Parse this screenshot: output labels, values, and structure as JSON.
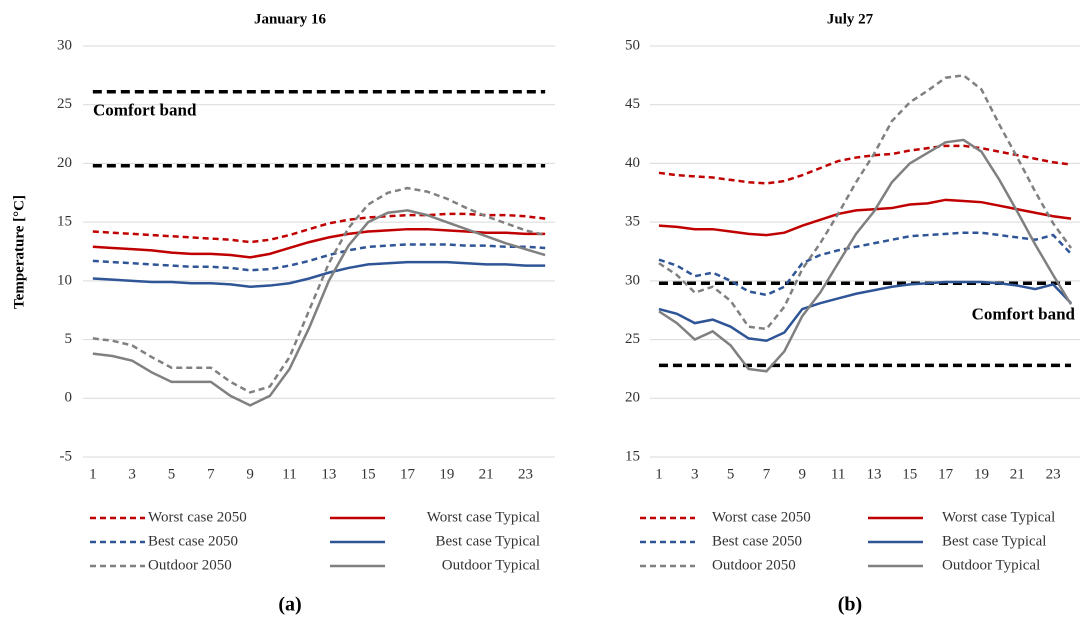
{
  "chart_data": [
    {
      "type": "line",
      "title": "January 16",
      "ylabel": "Temperature [°C]",
      "panel_label": "(a)",
      "x": [
        1,
        2,
        3,
        4,
        5,
        6,
        7,
        8,
        9,
        10,
        11,
        12,
        13,
        14,
        15,
        16,
        17,
        18,
        19,
        20,
        21,
        22,
        23,
        24
      ],
      "xlim": [
        0.5,
        24.5
      ],
      "xticks": [
        1,
        3,
        5,
        7,
        9,
        11,
        13,
        15,
        17,
        19,
        21,
        23
      ],
      "ylim": [
        -5,
        30
      ],
      "yticks": [
        -5,
        0,
        5,
        10,
        15,
        20,
        25,
        30
      ],
      "grid": true,
      "comfort_band": {
        "label": "Comfort band",
        "values": [
          19.8,
          26.1
        ],
        "color": "#000000"
      },
      "series": [
        {
          "name": "Worst case 2050",
          "color": "#c00000",
          "dashed": true,
          "values": [
            14.2,
            14.1,
            14.0,
            13.9,
            13.8,
            13.7,
            13.6,
            13.5,
            13.3,
            13.5,
            13.9,
            14.4,
            14.9,
            15.2,
            15.4,
            15.5,
            15.6,
            15.6,
            15.7,
            15.7,
            15.6,
            15.6,
            15.5,
            15.3
          ]
        },
        {
          "name": "Worst case Typical",
          "color": "#c00000",
          "dashed": false,
          "values": [
            12.9,
            12.8,
            12.7,
            12.6,
            12.4,
            12.3,
            12.3,
            12.2,
            12.0,
            12.3,
            12.8,
            13.3,
            13.7,
            14.0,
            14.2,
            14.3,
            14.4,
            14.4,
            14.3,
            14.2,
            14.1,
            14.1,
            14.0,
            14.0
          ]
        },
        {
          "name": "Best case 2050",
          "color": "#2f5597",
          "dashed": true,
          "values": [
            11.7,
            11.6,
            11.5,
            11.4,
            11.3,
            11.2,
            11.2,
            11.1,
            10.9,
            11.0,
            11.3,
            11.7,
            12.2,
            12.6,
            12.9,
            13.0,
            13.1,
            13.1,
            13.1,
            13.0,
            13.0,
            12.9,
            12.9,
            12.8
          ]
        },
        {
          "name": "Best case Typical",
          "color": "#2f5597",
          "dashed": false,
          "values": [
            10.2,
            10.1,
            10.0,
            9.9,
            9.9,
            9.8,
            9.8,
            9.7,
            9.5,
            9.6,
            9.8,
            10.2,
            10.7,
            11.1,
            11.4,
            11.5,
            11.6,
            11.6,
            11.6,
            11.5,
            11.4,
            11.4,
            11.3,
            11.3
          ]
        },
        {
          "name": "Outdoor 2050",
          "color": "#808080",
          "dashed": true,
          "values": [
            5.1,
            4.9,
            4.5,
            3.5,
            2.6,
            2.6,
            2.6,
            1.4,
            0.5,
            1.0,
            3.5,
            7.5,
            11.5,
            14.5,
            16.5,
            17.5,
            17.9,
            17.6,
            17.0,
            16.2,
            15.5,
            14.9,
            14.3,
            13.9
          ]
        },
        {
          "name": "Outdoor Typical",
          "color": "#808080",
          "dashed": false,
          "values": [
            3.8,
            3.6,
            3.2,
            2.2,
            1.4,
            1.4,
            1.4,
            0.2,
            -0.6,
            0.2,
            2.5,
            6.0,
            10.0,
            13.0,
            15.0,
            15.8,
            16.0,
            15.6,
            15.0,
            14.4,
            13.8,
            13.2,
            12.7,
            12.2
          ]
        }
      ]
    },
    {
      "type": "line",
      "title": "July 27",
      "panel_label": "(b)",
      "x": [
        1,
        2,
        3,
        4,
        5,
        6,
        7,
        8,
        9,
        10,
        11,
        12,
        13,
        14,
        15,
        16,
        17,
        18,
        19,
        20,
        21,
        22,
        23,
        24
      ],
      "xlim": [
        0.5,
        24.5
      ],
      "xticks": [
        1,
        3,
        5,
        7,
        9,
        11,
        13,
        15,
        17,
        19,
        21,
        23
      ],
      "ylim": [
        15,
        50
      ],
      "yticks": [
        15,
        20,
        25,
        30,
        35,
        40,
        45,
        50
      ],
      "grid": true,
      "comfort_band": {
        "label": "Comfort band",
        "values": [
          22.8,
          29.8
        ],
        "color": "#000000"
      },
      "series": [
        {
          "name": "Worst case 2050",
          "color": "#c00000",
          "dashed": true,
          "values": [
            39.2,
            39.0,
            38.9,
            38.8,
            38.6,
            38.4,
            38.3,
            38.5,
            39.0,
            39.6,
            40.2,
            40.5,
            40.7,
            40.8,
            41.1,
            41.3,
            41.5,
            41.5,
            41.3,
            41.0,
            40.7,
            40.4,
            40.1,
            39.9
          ]
        },
        {
          "name": "Worst case Typical",
          "color": "#c00000",
          "dashed": false,
          "values": [
            34.7,
            34.6,
            34.4,
            34.4,
            34.2,
            34.0,
            33.9,
            34.1,
            34.7,
            35.2,
            35.7,
            36.0,
            36.1,
            36.2,
            36.5,
            36.6,
            36.9,
            36.8,
            36.7,
            36.4,
            36.1,
            35.8,
            35.5,
            35.3
          ]
        },
        {
          "name": "Best case 2050",
          "color": "#2f5597",
          "dashed": true,
          "values": [
            31.8,
            31.3,
            30.4,
            30.7,
            30.0,
            29.1,
            28.8,
            29.5,
            31.5,
            32.2,
            32.6,
            32.9,
            33.2,
            33.5,
            33.8,
            33.9,
            34.0,
            34.1,
            34.1,
            33.9,
            33.7,
            33.5,
            33.9,
            32.3
          ]
        },
        {
          "name": "Best case Typical",
          "color": "#2f5597",
          "dashed": false,
          "values": [
            27.6,
            27.2,
            26.4,
            26.7,
            26.1,
            25.1,
            24.9,
            25.6,
            27.6,
            28.1,
            28.5,
            28.9,
            29.2,
            29.5,
            29.7,
            29.8,
            29.9,
            29.9,
            29.9,
            29.8,
            29.6,
            29.3,
            29.7,
            28.1
          ]
        },
        {
          "name": "Outdoor 2050",
          "color": "#808080",
          "dashed": true,
          "values": [
            31.5,
            30.5,
            29.0,
            29.5,
            28.3,
            26.1,
            25.9,
            27.8,
            31.0,
            33.2,
            35.7,
            38.4,
            40.8,
            43.6,
            45.2,
            46.2,
            47.3,
            47.5,
            46.3,
            43.3,
            40.5,
            37.6,
            34.9,
            32.8
          ]
        },
        {
          "name": "Outdoor Typical",
          "color": "#808080",
          "dashed": false,
          "values": [
            27.4,
            26.4,
            25.0,
            25.7,
            24.5,
            22.5,
            22.3,
            24.0,
            27.0,
            29.0,
            31.5,
            34.0,
            35.9,
            38.4,
            40.0,
            40.9,
            41.8,
            42.0,
            41.0,
            38.6,
            35.9,
            33.1,
            30.5,
            28.0
          ]
        }
      ]
    }
  ]
}
